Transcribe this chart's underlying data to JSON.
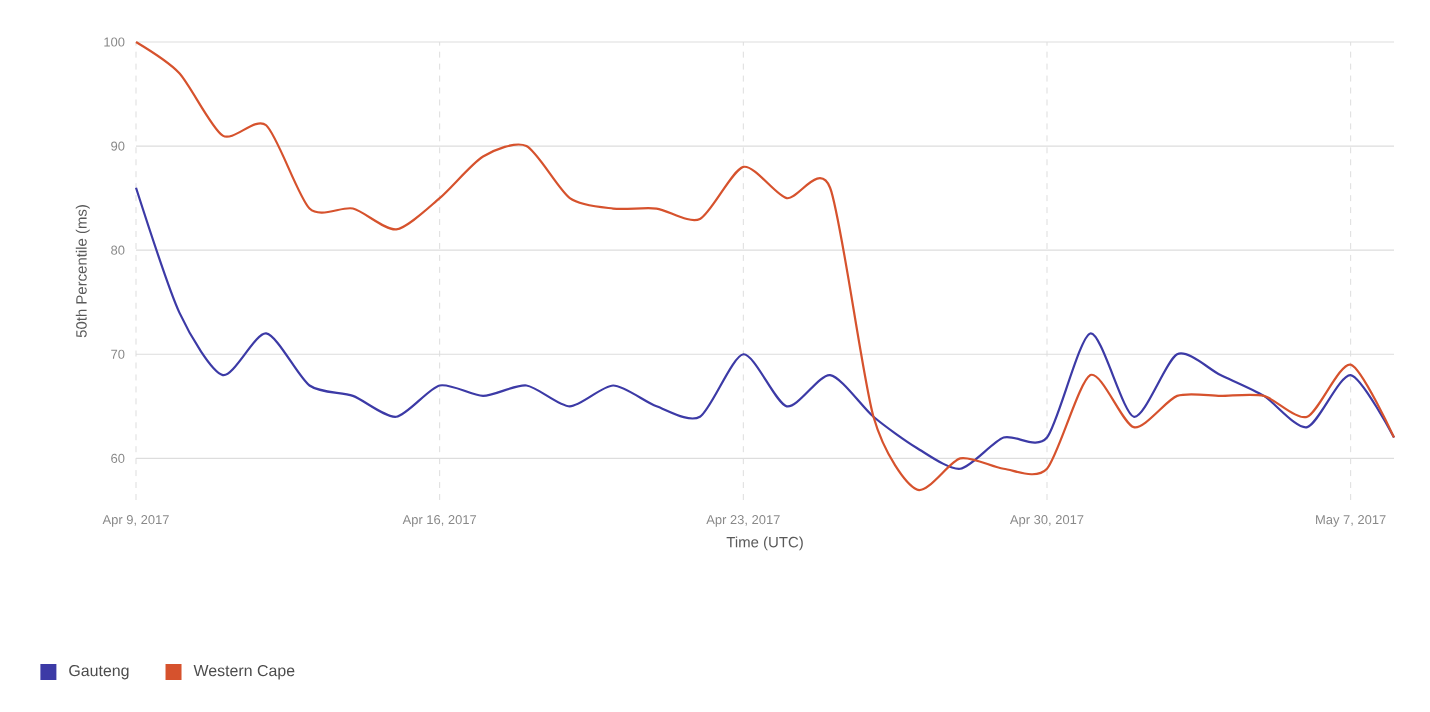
{
  "chart_data": {
    "type": "line",
    "xlabel": "Time (UTC)",
    "ylabel": "50th Percentile (ms)",
    "x": [
      "2017-04-09",
      "2017-04-10",
      "2017-04-11",
      "2017-04-12",
      "2017-04-13",
      "2017-04-14",
      "2017-04-15",
      "2017-04-16",
      "2017-04-17",
      "2017-04-18",
      "2017-04-19",
      "2017-04-20",
      "2017-04-21",
      "2017-04-22",
      "2017-04-23",
      "2017-04-24",
      "2017-04-25",
      "2017-04-26",
      "2017-04-27",
      "2017-04-28",
      "2017-04-29",
      "2017-04-30",
      "2017-05-01",
      "2017-05-02",
      "2017-05-03",
      "2017-05-04",
      "2017-05-05",
      "2017-05-06",
      "2017-05-07",
      "2017-05-08"
    ],
    "series": [
      {
        "name": "Gauteng",
        "color": "#3c3aa6",
        "values": [
          86,
          74,
          68,
          72,
          67,
          66,
          64,
          67,
          66,
          67,
          65,
          67,
          65,
          64,
          70,
          65,
          68,
          64,
          61,
          59,
          62,
          62,
          72,
          64,
          70,
          68,
          66,
          63,
          68,
          62
        ]
      },
      {
        "name": "Western Cape",
        "color": "#d6522d",
        "values": [
          100,
          97,
          91,
          92,
          84,
          84,
          82,
          85,
          89,
          90,
          85,
          84,
          84,
          83,
          88,
          85,
          86,
          64,
          57,
          60,
          59,
          59,
          68,
          63,
          66,
          66,
          66,
          64,
          69,
          62
        ]
      }
    ],
    "xlim": [
      "2017-04-09",
      "2017-05-08"
    ],
    "xticks": [
      {
        "value": "2017-04-09",
        "label": "Apr 9, 2017"
      },
      {
        "value": "2017-04-16",
        "label": "Apr 16, 2017"
      },
      {
        "value": "2017-04-23",
        "label": "Apr 23, 2017"
      },
      {
        "value": "2017-04-30",
        "label": "Apr 30, 2017"
      },
      {
        "value": "2017-05-07",
        "label": "May 7, 2017"
      }
    ],
    "ylim": [
      56,
      100
    ],
    "yticks": [
      60,
      70,
      80,
      90,
      100
    ],
    "grid": true,
    "legend": "bottom left",
    "marker": "none",
    "line_style": "solid"
  }
}
